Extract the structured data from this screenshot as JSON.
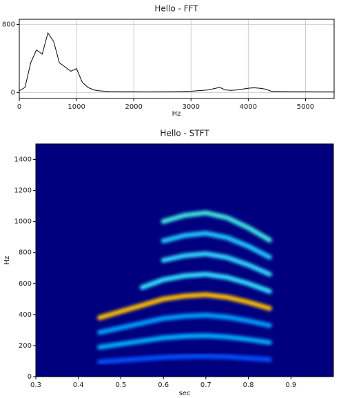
{
  "chart_data": [
    {
      "type": "line",
      "title": "Hello - FFT",
      "xlabel": "Hz",
      "xlim": [
        0,
        5500
      ],
      "ylim": [
        -70,
        860
      ],
      "xticks": [
        0,
        1000,
        2000,
        3000,
        4000,
        5000
      ],
      "yticks": [
        0,
        800
      ],
      "grid": true,
      "x": [
        0,
        100,
        200,
        300,
        400,
        500,
        600,
        700,
        800,
        900,
        1000,
        1100,
        1200,
        1300,
        1400,
        1500,
        1600,
        1800,
        2000,
        2200,
        2400,
        2600,
        2800,
        3000,
        3200,
        3300,
        3400,
        3500,
        3600,
        3700,
        3800,
        3900,
        4000,
        4100,
        4200,
        4300,
        4400,
        4600,
        4800,
        5000,
        5200,
        5500
      ],
      "series": [
        {
          "color": "#000000",
          "values": [
            20,
            60,
            350,
            500,
            450,
            700,
            600,
            350,
            300,
            250,
            280,
            120,
            60,
            30,
            20,
            15,
            12,
            10,
            10,
            8,
            9,
            10,
            12,
            15,
            25,
            30,
            45,
            60,
            30,
            25,
            30,
            40,
            50,
            55,
            50,
            40,
            15,
            12,
            10,
            10,
            8,
            8
          ]
        }
      ]
    },
    {
      "type": "spectrogram",
      "title": "Hello - STFT",
      "xlabel": "sec",
      "ylabel": "Hz",
      "xlim": [
        0.3,
        1.0
      ],
      "ylim": [
        0,
        1500
      ],
      "xticks": [
        0.3,
        0.4,
        0.5,
        0.6,
        0.7,
        0.8,
        0.9
      ],
      "yticks": [
        0,
        200,
        400,
        600,
        800,
        1000,
        1200,
        1400
      ],
      "background": "#00007f",
      "x": [
        0.45,
        0.5,
        0.55,
        0.6,
        0.65,
        0.7,
        0.75,
        0.8,
        0.85
      ],
      "series": [
        {
          "color": "#0050ff",
          "values": [
            95,
            105,
            115,
            125,
            130,
            132,
            128,
            120,
            110
          ]
        },
        {
          "color": "#00b0ff",
          "values": [
            190,
            210,
            230,
            250,
            260,
            264,
            256,
            240,
            220
          ]
        },
        {
          "color": "#00a0ff",
          "values": [
            285,
            315,
            345,
            375,
            390,
            396,
            384,
            360,
            330
          ]
        },
        {
          "color": "#ffc000",
          "values": [
            380,
            420,
            460,
            500,
            520,
            528,
            512,
            480,
            440
          ]
        },
        {
          "color": "#30e0ff",
          "values": [
            null,
            null,
            575,
            625,
            650,
            660,
            640,
            600,
            550
          ]
        },
        {
          "color": "#30d8ff",
          "values": [
            null,
            null,
            null,
            750,
            780,
            792,
            768,
            720,
            660
          ]
        },
        {
          "color": "#20c8ff",
          "values": [
            null,
            null,
            null,
            875,
            910,
            924,
            896,
            840,
            770
          ]
        },
        {
          "color": "#40e8e0",
          "values": [
            null,
            null,
            null,
            1000,
            1040,
            1056,
            1024,
            960,
            880
          ]
        }
      ]
    }
  ]
}
